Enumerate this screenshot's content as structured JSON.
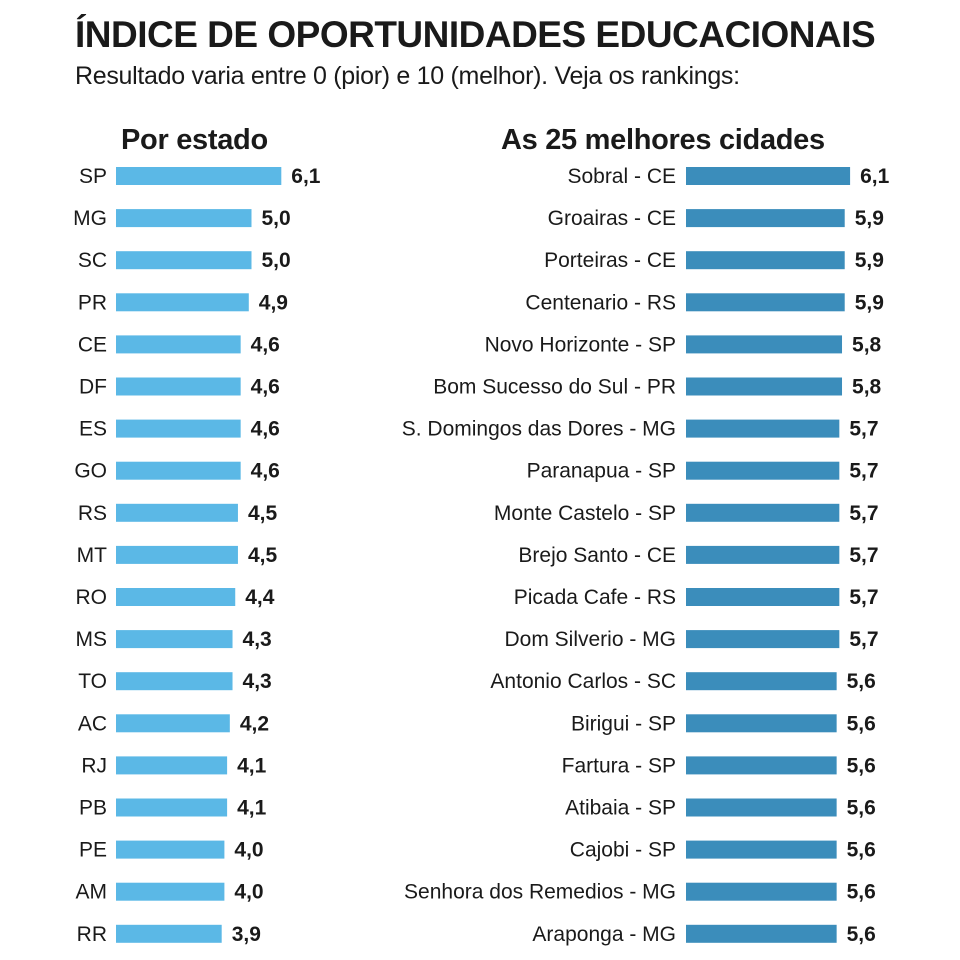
{
  "title": "ÍNDICE DE OPORTUNIDADES EDUCACIONAIS",
  "subtitle": "Resultado varia entre 0 (pior) e 10 (melhor). Veja os rankings:",
  "chart_data": [
    {
      "type": "bar",
      "orientation": "horizontal",
      "title": "Por estado",
      "color": "#5bb8e6",
      "categories": [
        "SP",
        "MG",
        "SC",
        "PR",
        "CE",
        "DF",
        "ES",
        "GO",
        "RS",
        "MT",
        "RO",
        "MS",
        "TO",
        "AC",
        "RJ",
        "PB",
        "PE",
        "AM",
        "RR"
      ],
      "values": [
        6.1,
        5.0,
        5.0,
        4.9,
        4.6,
        4.6,
        4.6,
        4.6,
        4.5,
        4.5,
        4.4,
        4.3,
        4.3,
        4.2,
        4.1,
        4.1,
        4.0,
        4.0,
        3.9
      ],
      "value_labels": [
        "6,1",
        "5,0",
        "5,0",
        "4,9",
        "4,6",
        "4,6",
        "4,6",
        "4,6",
        "4,5",
        "4,5",
        "4,4",
        "4,3",
        "4,3",
        "4,2",
        "4,1",
        "4,1",
        "4,0",
        "4,0",
        "3,9"
      ]
    },
    {
      "type": "bar",
      "orientation": "horizontal",
      "title": "As 25 melhores cidades",
      "color": "#3b8dbb",
      "categories": [
        "Sobral - CE",
        "Groairas - CE",
        "Porteiras - CE",
        "Centenario - RS",
        "Novo Horizonte - SP",
        "Bom Sucesso do Sul - PR",
        "S. Domingos das Dores - MG",
        "Paranapua - SP",
        "Monte Castelo - SP",
        "Brejo Santo - CE",
        "Picada Cafe - RS",
        "Dom Silverio - MG",
        "Antonio Carlos - SC",
        "Birigui - SP",
        "Fartura - SP",
        "Atibaia - SP",
        "Cajobi - SP",
        "Senhora dos Remedios - MG",
        "Araponga - MG"
      ],
      "values": [
        6.1,
        5.9,
        5.9,
        5.9,
        5.8,
        5.8,
        5.7,
        5.7,
        5.7,
        5.7,
        5.7,
        5.7,
        5.6,
        5.6,
        5.6,
        5.6,
        5.6,
        5.6,
        5.6
      ],
      "value_labels": [
        "6,1",
        "5,9",
        "5,9",
        "5,9",
        "5,8",
        "5,8",
        "5,7",
        "5,7",
        "5,7",
        "5,7",
        "5,7",
        "5,7",
        "5,6",
        "5,6",
        "5,6",
        "5,6",
        "5,6",
        "5,6",
        "5,6"
      ]
    }
  ]
}
